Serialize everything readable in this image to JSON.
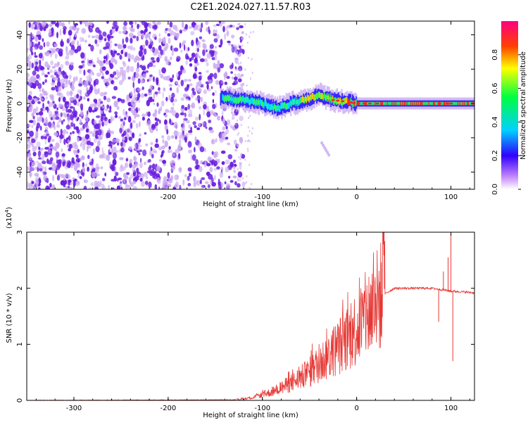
{
  "title": "C2E1.2024.027.11.57.R03",
  "colors": {
    "snr_line": "#e53935",
    "spectro_weak": "#c9a8f0",
    "spectro_mid": "#6a1fe0"
  },
  "chart_data": [
    {
      "type": "heatmap",
      "xlabel": "Height of straight line (km)",
      "ylabel": "Frequency (Hz)",
      "xlim": [
        -350,
        125
      ],
      "ylim": [
        -50,
        48
      ],
      "x_ticks": [
        -300,
        -200,
        -100,
        0,
        100
      ],
      "y_ticks": [
        -40,
        -20,
        0,
        20,
        40
      ],
      "colorbar": {
        "label": "Normalized spectral amplitude",
        "range": [
          0,
          1
        ],
        "ticks": [
          "0.0",
          "0.2",
          "0.4",
          "0.6",
          "0.8"
        ],
        "colormap": [
          "#ffffff",
          "#c080ff",
          "#3000ff",
          "#00d0ff",
          "#00ff40",
          "#ffff00",
          "#ff4000",
          "#ff0080"
        ]
      },
      "noise_region_x": [
        -350,
        -130
      ],
      "ridge": [
        {
          "x": -145,
          "y": 3
        },
        {
          "x": -120,
          "y": 2
        },
        {
          "x": -100,
          "y": 0
        },
        {
          "x": -85,
          "y": -3
        },
        {
          "x": -70,
          "y": 0
        },
        {
          "x": -55,
          "y": 2
        },
        {
          "x": -40,
          "y": 5
        },
        {
          "x": -25,
          "y": 2
        },
        {
          "x": -10,
          "y": 1
        },
        {
          "x": 0,
          "y": 0
        },
        {
          "x": 50,
          "y": 0
        },
        {
          "x": 100,
          "y": 0
        },
        {
          "x": 125,
          "y": 0
        }
      ]
    },
    {
      "type": "line",
      "xlabel": "Height of straight line (km)",
      "ylabel": "SNR (10 * v/v)",
      "y_scale_note": "(x10",
      "y_scale_exp": "4",
      "y_scale_close": ")",
      "xlim": [
        -350,
        125
      ],
      "ylim": [
        0,
        3
      ],
      "x_ticks": [
        -300,
        -200,
        -100,
        0,
        100
      ],
      "y_ticks": [
        0,
        1,
        2,
        3
      ],
      "series": [
        {
          "color": "#e53935",
          "envelope": [
            {
              "x": -350,
              "y": 0.0
            },
            {
              "x": -130,
              "y": 0.01
            },
            {
              "x": -110,
              "y": 0.05
            },
            {
              "x": -90,
              "y": 0.15
            },
            {
              "x": -70,
              "y": 0.3
            },
            {
              "x": -50,
              "y": 0.5
            },
            {
              "x": -30,
              "y": 0.8
            },
            {
              "x": -10,
              "y": 1.1
            },
            {
              "x": 10,
              "y": 1.5
            },
            {
              "x": 25,
              "y": 1.85
            },
            {
              "x": 40,
              "y": 2.0
            },
            {
              "x": 80,
              "y": 2.0
            },
            {
              "x": 100,
              "y": 1.95
            },
            {
              "x": 125,
              "y": 1.92
            }
          ],
          "spikes": [
            {
              "x": 87,
              "y": 1.4
            },
            {
              "x": 92,
              "y": 2.3
            },
            {
              "x": 97,
              "y": 2.55
            },
            {
              "x": 100,
              "y": 3.0
            },
            {
              "x": 102,
              "y": 0.7
            }
          ]
        }
      ]
    }
  ]
}
